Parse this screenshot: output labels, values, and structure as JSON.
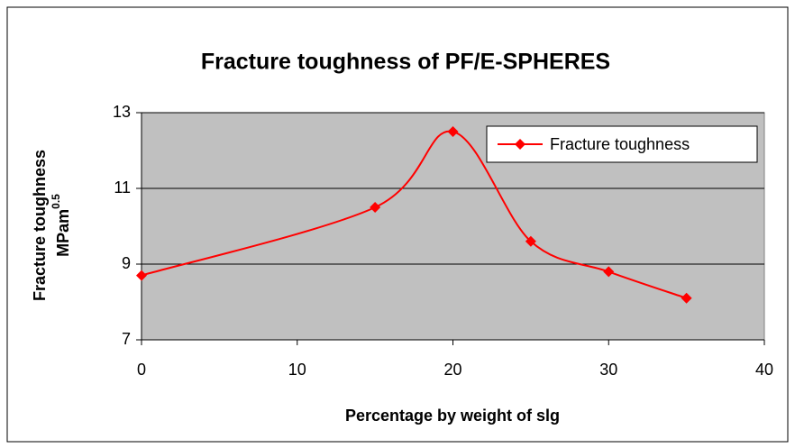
{
  "chart_data": {
    "type": "line",
    "title": "Fracture toughness of PF/E-SPHERES",
    "x_label": "Percentage by weight of slg",
    "y_label": "Fracture toughness",
    "y_unit": "MPam",
    "y_unit_exponent": "0.5",
    "x": [
      0,
      15,
      20,
      25,
      30,
      35
    ],
    "series": [
      {
        "name": "Fracture toughness",
        "color": "#ff0000",
        "values": [
          8.7,
          10.5,
          12.5,
          9.6,
          8.8,
          8.1
        ]
      }
    ],
    "xlim": [
      0,
      40
    ],
    "xticks": [
      0,
      10,
      20,
      30,
      40
    ],
    "ylim": [
      7,
      13
    ],
    "yticks": [
      7,
      9,
      11,
      13
    ],
    "grid": true,
    "smooth": true,
    "legend": "upper right",
    "plot_background": "#c0c0c0"
  }
}
